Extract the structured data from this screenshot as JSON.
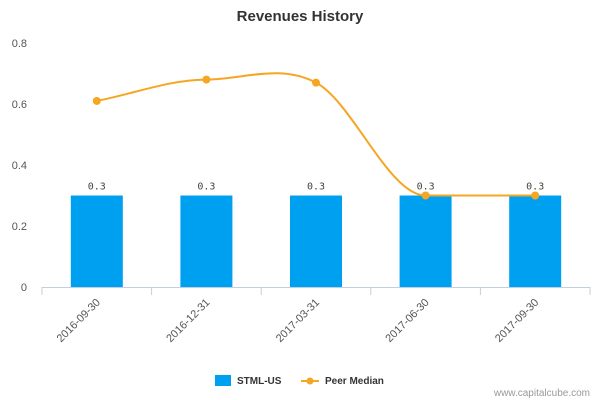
{
  "chart_data": {
    "type": "bar",
    "title": "Revenues History",
    "xlabel": "",
    "ylabel": "",
    "ylim": [
      0,
      0.8
    ],
    "yticks": [
      0,
      0.2,
      0.4,
      0.6,
      0.8
    ],
    "ytick_labels": [
      "0",
      "0.2",
      "0.4",
      "0.6",
      "0.8"
    ],
    "categories": [
      "2016-09-30",
      "2016-12-31",
      "2017-03-31",
      "2017-06-30",
      "2017-09-30"
    ],
    "series": [
      {
        "name": "STML-US",
        "type": "bar",
        "color": "#00a0f0",
        "values": [
          0.3,
          0.3,
          0.3,
          0.3,
          0.3
        ],
        "data_labels": [
          "0.3",
          "0.3",
          "0.3",
          "0.3",
          "0.3"
        ]
      },
      {
        "name": "Peer Median",
        "type": "line",
        "color": "#f5a623",
        "values": [
          0.61,
          0.68,
          0.67,
          0.3,
          0.3
        ]
      }
    ],
    "legend_position": "bottom-center",
    "grid": false
  },
  "footer": {
    "watermark": "www.capitalcube.com"
  }
}
